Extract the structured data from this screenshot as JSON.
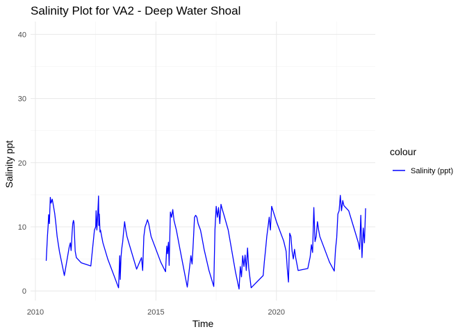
{
  "chart_data": {
    "type": "line",
    "title": "Salinity Plot for VA2 - Deep Water Shoal",
    "xlabel": "Time",
    "ylabel": "Salinity ppt",
    "xlim": [
      2009.8,
      2024.1
    ],
    "ylim": [
      -1.5,
      42
    ],
    "x_ticks": [
      2010,
      2015,
      2020
    ],
    "y_ticks": [
      0,
      10,
      20,
      30,
      40
    ],
    "grid": true,
    "legend": {
      "title": "colour",
      "position": "right"
    },
    "series": [
      {
        "name": "Salinity (ppt)",
        "color": "#0000ff",
        "x": [
          2010.45,
          2010.5,
          2010.53,
          2010.55,
          2010.58,
          2010.6,
          2010.62,
          2010.65,
          2010.7,
          2010.75,
          2010.8,
          2010.85,
          2010.9,
          2011.0,
          2011.2,
          2011.4,
          2011.45,
          2011.48,
          2011.5,
          2011.52,
          2011.55,
          2011.58,
          2011.6,
          2011.65,
          2011.7,
          2011.75,
          2011.8,
          2011.85,
          2011.9,
          2012.3,
          2012.45,
          2012.5,
          2012.52,
          2012.55,
          2012.6,
          2012.62,
          2012.63,
          2012.65,
          2012.68,
          2012.7,
          2012.75,
          2012.8,
          2013.0,
          2013.3,
          2013.45,
          2013.5,
          2013.52,
          2013.55,
          2013.58,
          2013.6,
          2013.62,
          2013.65,
          2013.7,
          2013.75,
          2013.8,
          2013.9,
          2014.2,
          2014.4,
          2014.45,
          2014.5,
          2014.55,
          2014.6,
          2014.65,
          2014.7,
          2014.75,
          2014.8,
          2015.0,
          2015.2,
          2015.4,
          2015.45,
          2015.48,
          2015.52,
          2015.55,
          2015.6,
          2015.65,
          2015.7,
          2015.75,
          2015.85,
          2016.0,
          2016.3,
          2016.45,
          2016.5,
          2016.55,
          2016.6,
          2016.65,
          2016.7,
          2016.75,
          2016.8,
          2016.85,
          2016.9,
          2017.0,
          2017.2,
          2017.4,
          2017.45,
          2017.5,
          2017.55,
          2017.6,
          2017.65,
          2017.7,
          2017.75,
          2017.85,
          2018.0,
          2018.3,
          2018.45,
          2018.5,
          2018.55,
          2018.6,
          2018.65,
          2018.7,
          2018.75,
          2018.8,
          2018.85,
          2018.95,
          2019.45,
          2019.5,
          2019.55,
          2019.6,
          2019.65,
          2019.7,
          2019.75,
          2019.8,
          2020.0,
          2020.3,
          2020.4,
          2020.45,
          2020.5,
          2020.55,
          2020.6,
          2020.65,
          2020.7,
          2020.75,
          2020.8,
          2020.9,
          2021.3,
          2021.4,
          2021.45,
          2021.5,
          2021.55,
          2021.6,
          2021.65,
          2021.7,
          2021.75,
          2021.8,
          2022.0,
          2022.2,
          2022.4,
          2022.45,
          2022.5,
          2022.55,
          2022.6,
          2022.65,
          2022.7,
          2022.75,
          2022.8,
          2023.0,
          2023.2,
          2023.4,
          2023.45,
          2023.5,
          2023.55,
          2023.6,
          2023.65,
          2023.7
        ],
        "y": [
          4.7,
          8.6,
          10.2,
          11.9,
          10.5,
          12.6,
          14.6,
          13.7,
          14.3,
          13.2,
          12.1,
          10.5,
          8.5,
          6.1,
          2.4,
          6.8,
          7.5,
          6.3,
          7.5,
          9.0,
          10.5,
          11.0,
          10.7,
          6.2,
          5.2,
          5.0,
          4.8,
          4.6,
          4.4,
          3.9,
          9.5,
          10.0,
          12.5,
          9.5,
          13.0,
          14.8,
          10.2,
          12.0,
          9.2,
          9.5,
          8.5,
          7.5,
          5.0,
          2.0,
          0.5,
          5.5,
          1.8,
          5.2,
          6.5,
          7.1,
          7.6,
          8.8,
          10.8,
          9.5,
          8.5,
          7.2,
          3.4,
          5.2,
          3.2,
          8.5,
          10.0,
          10.5,
          11.1,
          10.5,
          9.5,
          8.5,
          6.5,
          4.5,
          3.0,
          7.0,
          5.8,
          7.6,
          4.0,
          12.3,
          11.5,
          12.7,
          11.0,
          9.5,
          6.5,
          0.6,
          5.5,
          4.2,
          7.5,
          11.5,
          11.8,
          11.5,
          10.5,
          10.0,
          9.5,
          8.5,
          6.5,
          3.2,
          0.7,
          9.5,
          13.2,
          11.5,
          13.0,
          10.5,
          13.5,
          12.8,
          11.5,
          9.5,
          3.0,
          0.3,
          3.8,
          2.2,
          5.5,
          3.8,
          5.6,
          3.2,
          6.7,
          3.6,
          0.5,
          2.4,
          4.6,
          6.5,
          8.5,
          10.0,
          11.5,
          9.5,
          13.2,
          10.8,
          7.8,
          6.2,
          3.5,
          1.4,
          9.0,
          8.5,
          6.2,
          5.0,
          6.5,
          5.2,
          3.2,
          3.5,
          5.3,
          7.2,
          6.0,
          13.0,
          7.7,
          8.5,
          10.8,
          9.5,
          8.5,
          6.5,
          4.5,
          3.1,
          6.5,
          8.3,
          12.0,
          12.5,
          14.9,
          12.5,
          14.1,
          13.3,
          12.5,
          10.0,
          7.5,
          6.5,
          11.8,
          5.2,
          9.8,
          7.5,
          12.9
        ]
      }
    ]
  }
}
